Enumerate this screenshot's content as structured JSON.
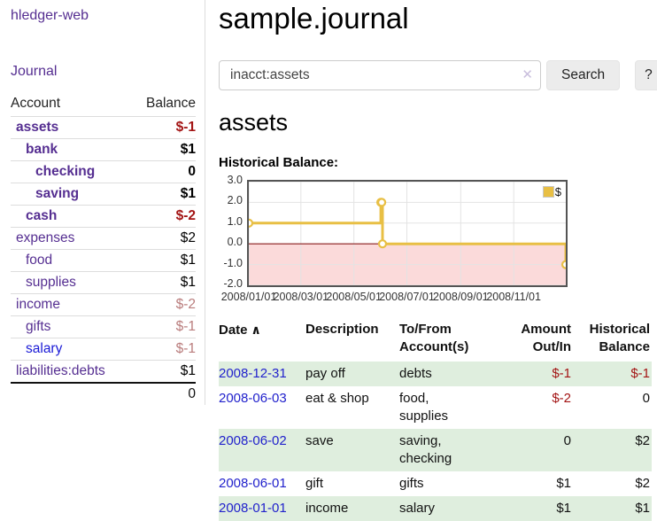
{
  "sidebar": {
    "app_title": "hledger-web",
    "nav": {
      "journal_label": "Journal"
    },
    "accounts": {
      "header": {
        "account": "Account",
        "balance": "Balance"
      },
      "rows": [
        {
          "name": "assets",
          "balance": "$-1"
        },
        {
          "name": "bank",
          "balance": "$1"
        },
        {
          "name": "checking",
          "balance": "0"
        },
        {
          "name": "saving",
          "balance": "$1"
        },
        {
          "name": "cash",
          "balance": "$-2"
        },
        {
          "name": "expenses",
          "balance": "$2"
        },
        {
          "name": "food",
          "balance": "$1"
        },
        {
          "name": "supplies",
          "balance": "$1"
        },
        {
          "name": "income",
          "balance": "$-2"
        },
        {
          "name": "gifts",
          "balance": "$-1"
        },
        {
          "name": "salary",
          "balance": "$-1"
        },
        {
          "name": "liabilities:debts",
          "balance": "$1"
        }
      ],
      "total": "0"
    }
  },
  "main": {
    "title": "sample.journal",
    "search": {
      "value": "inacct:assets",
      "clear_icon": "✕",
      "button_label": "Search",
      "help_label": "?"
    },
    "account_heading": "assets",
    "chart_heading": "Historical Balance:",
    "register": {
      "headers": {
        "date": "Date",
        "sort_icon": "∧",
        "description": "Description",
        "accounts": "To/From Account(s)",
        "amount": "Amount Out/In",
        "balance": "Historical Balance"
      },
      "rows": [
        {
          "date": "2008-12-31",
          "description": "pay off",
          "accounts": "debts",
          "amount": "$-1",
          "balance": "$-1"
        },
        {
          "date": "2008-06-03",
          "description": "eat & shop",
          "accounts": "food, supplies",
          "amount": "$-2",
          "balance": "0"
        },
        {
          "date": "2008-06-02",
          "description": "save",
          "accounts": "saving, checking",
          "amount": "0",
          "balance": "$2"
        },
        {
          "date": "2008-06-01",
          "description": "gift",
          "accounts": "gifts",
          "amount": "$1",
          "balance": "$2"
        },
        {
          "date": "2008-01-01",
          "description": "income",
          "accounts": "salary",
          "amount": "$1",
          "balance": "$1"
        }
      ]
    }
  },
  "chart_data": {
    "type": "line",
    "step": true,
    "title": "Historical Balance:",
    "series": [
      {
        "name": "$",
        "points": [
          [
            "2008-01-01",
            1
          ],
          [
            "2008-06-01",
            2
          ],
          [
            "2008-06-02",
            2
          ],
          [
            "2008-06-03",
            0
          ],
          [
            "2008-12-31",
            -1
          ]
        ]
      }
    ],
    "xlim": [
      "2008-01-01",
      "2008-12-31"
    ],
    "ylim": [
      -2,
      3
    ],
    "yticks": [
      3,
      2,
      1,
      0,
      -1,
      -2
    ],
    "ytick_labels": [
      "3.0",
      "2.0",
      "1.0",
      "0.0",
      "-1.0",
      "-2.0"
    ],
    "xticks": [
      "2008-01-01",
      "2008-03-01",
      "2008-05-01",
      "2008-07-01",
      "2008-09-01",
      "2008-11-01"
    ],
    "xtick_labels": [
      "2008/01/01",
      "2008/03/01",
      "2008/05/01",
      "2008/07/01",
      "2008/09/01",
      "2008/11/01"
    ],
    "legend_label": "$",
    "legend_position": "top-right",
    "grid": true,
    "negative_region_shaded": true
  },
  "colors": {
    "link_blue": "#2222cc",
    "link_visited_purple": "#552e91",
    "negative_strong": "#a31414",
    "negative_muted": "#b97c7c",
    "row_green": "#dfeede",
    "series_gold": "#e8bf44",
    "negative_fill": "#fbdada",
    "zero_line": "#8b1a1a",
    "grid_line": "#e3e3e3",
    "plot_border": "#545454"
  }
}
